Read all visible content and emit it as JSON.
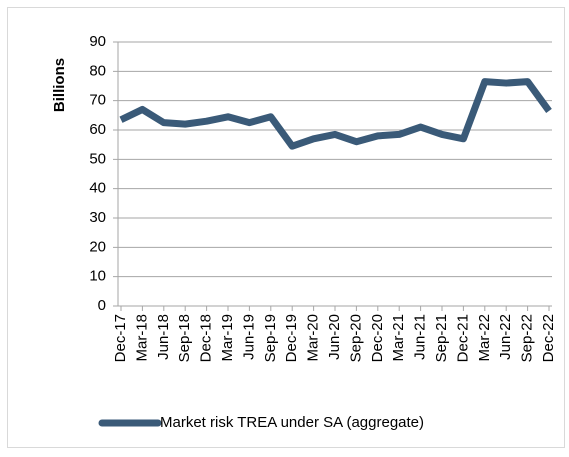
{
  "chart_data": {
    "type": "line",
    "ylabel": "Billions",
    "categories": [
      "Dec-17",
      "Mar-18",
      "Jun-18",
      "Sep-18",
      "Dec-18",
      "Mar-19",
      "Jun-19",
      "Sep-19",
      "Dec-19",
      "Mar-20",
      "Jun-20",
      "Sep-20",
      "Dec-20",
      "Mar-21",
      "Jun-21",
      "Sep-21",
      "Dec-21",
      "Mar-22",
      "Jun-22",
      "Sep-22",
      "Dec-22"
    ],
    "series": [
      {
        "name": "Market risk TREA under SA (aggregate)",
        "color": "#3a5a78",
        "values": [
          63.5,
          67,
          62.5,
          62,
          63,
          64.5,
          62.5,
          64.5,
          54.5,
          57,
          58.5,
          56,
          58,
          58.5,
          61,
          58.5,
          57,
          76.5,
          76,
          76.5,
          66.5
        ]
      }
    ],
    "ylim": [
      0,
      90
    ],
    "yticks": [
      0,
      10,
      20,
      30,
      40,
      50,
      60,
      70,
      80,
      90
    ],
    "grid": true,
    "legend": "bottom"
  }
}
